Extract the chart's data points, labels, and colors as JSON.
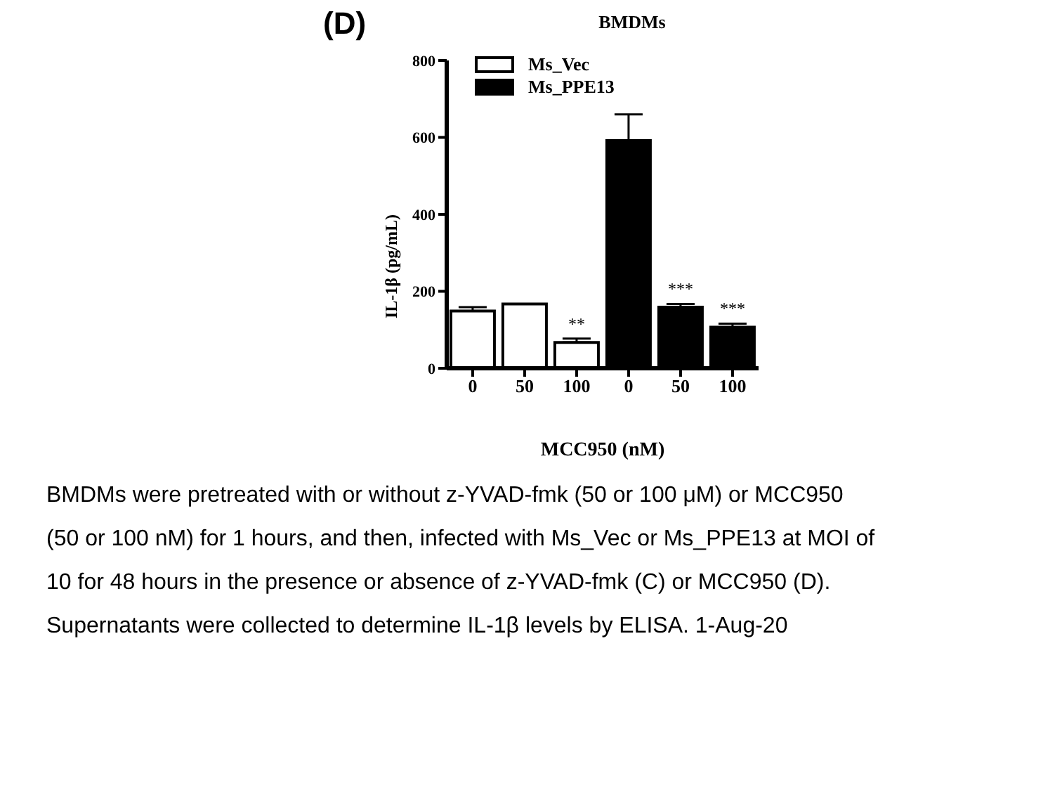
{
  "chart_data": {
    "type": "bar",
    "title": "BMDMs",
    "xlabel": "MCC950 (nM)",
    "ylabel": "IL-1β (pg/mL)",
    "annotations": [
      "(D)",
      "BMDMs were pretreated with or without z-YVAD-fmk (50 or 100 μM) or MCC950",
      "(50 or 100 nM) for 1 hours, and then, infected with Ms_Vec or Ms_PPE13 at MOI of",
      "10 for 48 hours in the presence or absence of z-YVAD-fmk (C) or MCC950 (D).",
      "Supernatants were collected to determine IL-1β levels by ELISA.  1-Aug-20"
    ],
    "categories": [
      "0",
      "50",
      "100",
      "0",
      "50",
      "100"
    ],
    "stacked": true,
    "series": [
      {
        "name": "Ms_Vec",
        "color": "#ffffff",
        "values": [
          149,
          167,
          67,
          null,
          null,
          null
        ],
        "errors": [
          [
            149,
            159
          ],
          null,
          [
            67,
            77
          ],
          null,
          null,
          null
        ],
        "value_labels": [
          null,
          null,
          "**",
          null,
          null,
          null
        ]
      },
      {
        "name": "Ms_PPE13",
        "color": "#000000",
        "values": [
          null,
          null,
          null,
          592,
          159,
          107
        ],
        "errors": [
          null,
          null,
          null,
          [
            592,
            660
          ],
          [
            159,
            167
          ],
          [
            107,
            116
          ]
        ],
        "value_labels": [
          null,
          null,
          null,
          null,
          "***",
          "***"
        ]
      }
    ],
    "ylim": [
      0,
      800
    ],
    "yticks": [
      0,
      200,
      400,
      600,
      800
    ],
    "legend": "top left"
  }
}
